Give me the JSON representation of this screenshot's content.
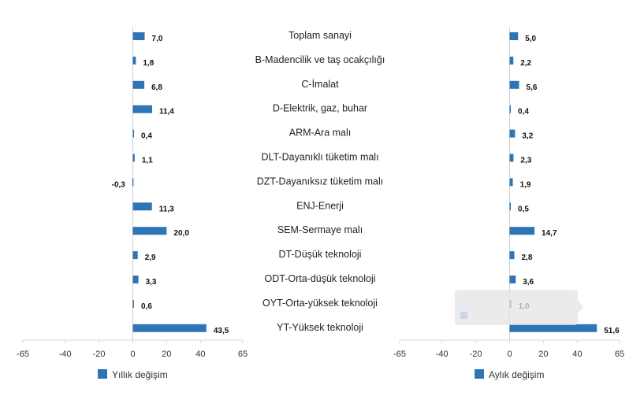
{
  "chart_data": {
    "type": "bar",
    "orientation": "horizontal",
    "grid": false,
    "legend_position": "bottom",
    "bar_color": "#2e75b6",
    "categories": [
      "Toplam sanayi",
      "B-Madencilik ve taş ocakçılığı",
      "C-İmalat",
      "D-Elektrik, gaz, buhar",
      "ARM-Ara malı",
      "DLT-Dayanıklı tüketim malı",
      "DZT-Dayanıksız tüketim malı",
      "ENJ-Enerji",
      "SEM-Sermaye malı",
      "DT-Düşük teknoloji",
      "ODT-Orta-düşük teknoloji",
      "OYT-Orta-yüksek teknoloji",
      "YT-Yüksek teknoloji"
    ],
    "panels": [
      {
        "name": "Yıllık değişim",
        "values": [
          7.0,
          1.8,
          6.8,
          11.4,
          0.4,
          1.1,
          -0.3,
          11.3,
          20.0,
          2.9,
          3.3,
          0.6,
          43.5
        ],
        "value_labels": [
          "7,0",
          "1,8",
          "6,8",
          "11,4",
          "0,4",
          "1,1",
          "-0,3",
          "11,3",
          "20,0",
          "2,9",
          "3,3",
          "0,6",
          "43,5"
        ],
        "xlim": [
          -65,
          65
        ],
        "ticks": [
          -65,
          -40,
          -20,
          0,
          20,
          40,
          65
        ]
      },
      {
        "name": "Aylık değişim",
        "values": [
          5.0,
          2.2,
          5.6,
          0.4,
          3.2,
          2.3,
          1.9,
          0.5,
          14.7,
          2.8,
          3.6,
          1.0,
          51.6
        ],
        "value_labels": [
          "5,0",
          "2,2",
          "5,6",
          "0,4",
          "3,2",
          "2,3",
          "1,9",
          "0,5",
          "14,7",
          "2,8",
          "3,6",
          "1,0",
          "51,6"
        ],
        "xlim": [
          -65,
          65
        ],
        "ticks": [
          -65,
          -40,
          -20,
          0,
          20,
          40,
          65
        ]
      }
    ]
  }
}
